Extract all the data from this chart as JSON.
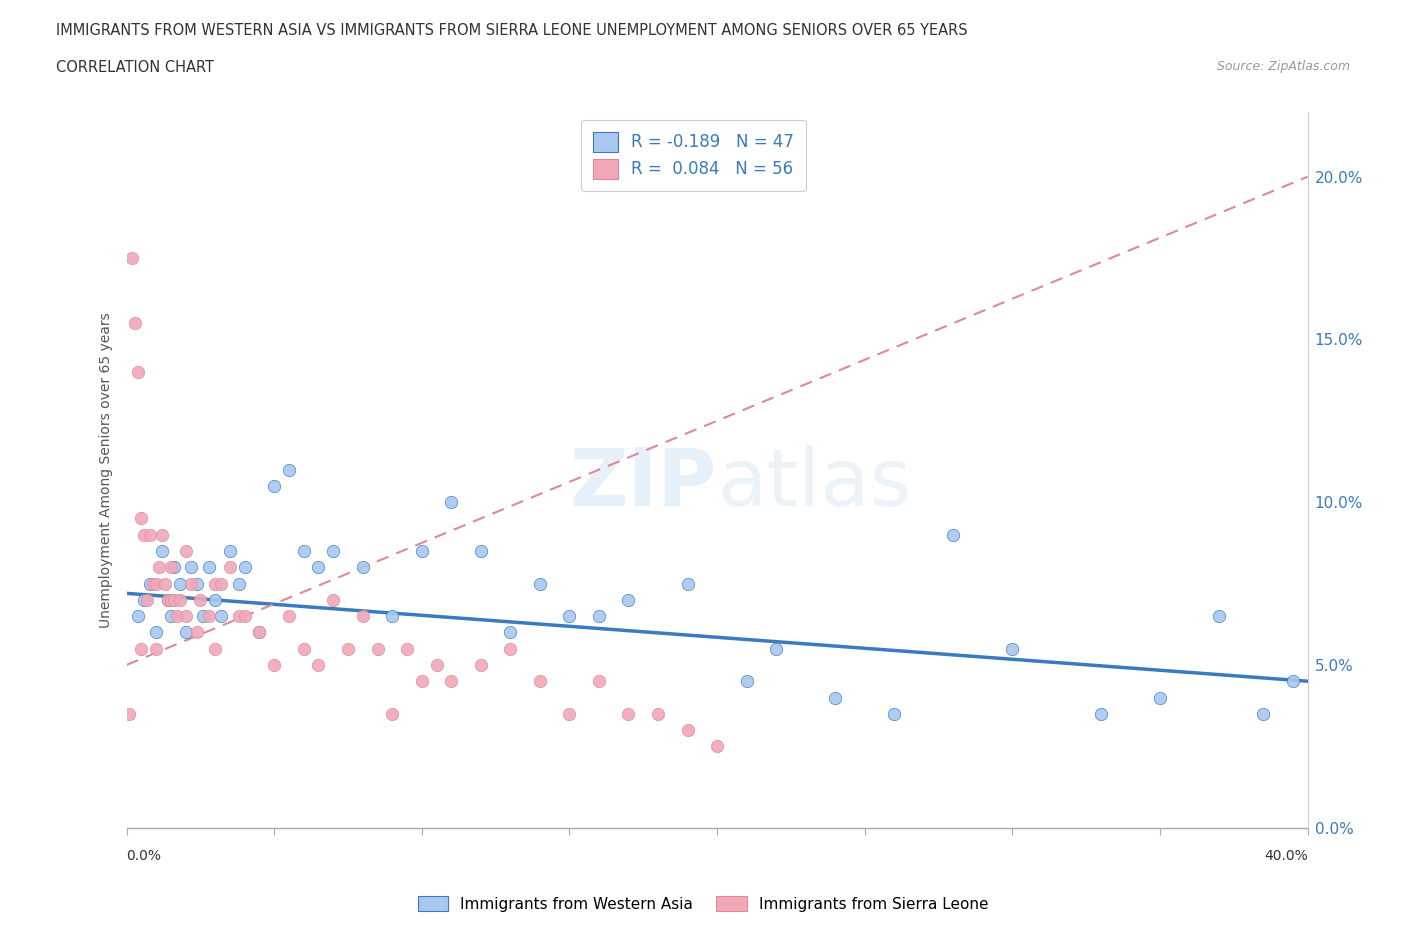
{
  "title_line1": "IMMIGRANTS FROM WESTERN ASIA VS IMMIGRANTS FROM SIERRA LEONE UNEMPLOYMENT AMONG SENIORS OVER 65 YEARS",
  "title_line2": "CORRELATION CHART",
  "source": "Source: ZipAtlas.com",
  "ylabel": "Unemployment Among Seniors over 65 years",
  "ytick_vals": [
    0.0,
    5.0,
    10.0,
    15.0,
    20.0
  ],
  "xlim": [
    0.0,
    40.0
  ],
  "ylim": [
    0.0,
    22.0
  ],
  "color_western_asia": "#a8c8f0",
  "color_sierra_leone": "#f0a8b8",
  "color_trend_western": "#3a7abf",
  "color_trend_sierra": "#e08898",
  "watermark_text": "ZIPatlas",
  "western_asia_x": [
    0.4,
    0.6,
    0.8,
    1.0,
    1.2,
    1.4,
    1.5,
    1.6,
    1.8,
    2.0,
    2.2,
    2.4,
    2.6,
    2.8,
    3.0,
    3.2,
    3.5,
    3.8,
    4.0,
    4.5,
    5.0,
    5.5,
    6.0,
    6.5,
    7.0,
    8.0,
    9.0,
    10.0,
    11.0,
    12.0,
    13.0,
    14.0,
    15.0,
    16.0,
    17.0,
    19.0,
    21.0,
    22.0,
    24.0,
    26.0,
    28.0,
    30.0,
    33.0,
    35.0,
    37.0,
    38.5,
    39.5
  ],
  "western_asia_y": [
    6.5,
    7.0,
    7.5,
    6.0,
    8.5,
    7.0,
    6.5,
    8.0,
    7.5,
    6.0,
    8.0,
    7.5,
    6.5,
    8.0,
    7.0,
    6.5,
    8.5,
    7.5,
    8.0,
    6.0,
    10.5,
    11.0,
    8.5,
    8.0,
    8.5,
    8.0,
    6.5,
    8.5,
    10.0,
    8.5,
    6.0,
    7.5,
    6.5,
    6.5,
    7.0,
    7.5,
    4.5,
    5.5,
    4.0,
    3.5,
    9.0,
    5.5,
    3.5,
    4.0,
    6.5,
    3.5,
    4.5
  ],
  "sierra_leone_x": [
    0.1,
    0.2,
    0.3,
    0.4,
    0.5,
    0.5,
    0.6,
    0.7,
    0.8,
    0.9,
    1.0,
    1.0,
    1.1,
    1.2,
    1.3,
    1.4,
    1.5,
    1.5,
    1.6,
    1.7,
    1.8,
    2.0,
    2.0,
    2.2,
    2.4,
    2.5,
    2.8,
    3.0,
    3.0,
    3.2,
    3.5,
    3.8,
    4.0,
    4.5,
    5.0,
    5.5,
    6.0,
    6.5,
    7.0,
    7.5,
    8.0,
    8.5,
    9.0,
    9.5,
    10.0,
    10.5,
    11.0,
    12.0,
    13.0,
    14.0,
    15.0,
    16.0,
    17.0,
    18.0,
    19.0,
    20.0
  ],
  "sierra_leone_y": [
    3.5,
    17.5,
    15.5,
    14.0,
    9.5,
    5.5,
    9.0,
    7.0,
    9.0,
    7.5,
    7.5,
    5.5,
    8.0,
    9.0,
    7.5,
    7.0,
    8.0,
    7.0,
    7.0,
    6.5,
    7.0,
    8.5,
    6.5,
    7.5,
    6.0,
    7.0,
    6.5,
    7.5,
    5.5,
    7.5,
    8.0,
    6.5,
    6.5,
    6.0,
    5.0,
    6.5,
    5.5,
    5.0,
    7.0,
    5.5,
    6.5,
    5.5,
    3.5,
    5.5,
    4.5,
    5.0,
    4.5,
    5.0,
    5.5,
    4.5,
    3.5,
    4.5,
    3.5,
    3.5,
    3.0,
    2.5
  ]
}
